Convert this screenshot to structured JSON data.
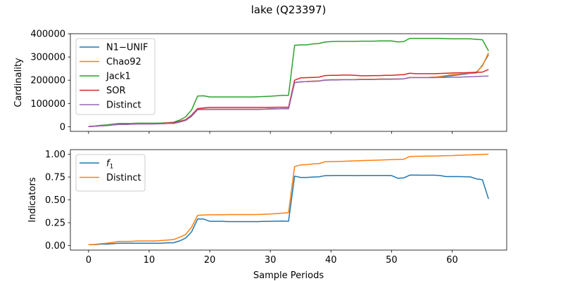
{
  "figure": {
    "title": "lake (Q23397)",
    "shared_xlabel": "Sample Periods"
  },
  "colors": {
    "blue": "#1f77b4",
    "orange": "#ff7f0e",
    "green": "#2ca02c",
    "red": "#d62728",
    "purple": "#9467bd"
  },
  "chart_data": [
    {
      "type": "line",
      "title": "",
      "xlabel": "",
      "ylabel": "Cardinality",
      "xlim": [
        -3,
        69
      ],
      "ylim": [
        -20000,
        400000
      ],
      "xticks": [
        0,
        10,
        20,
        30,
        40,
        50,
        60
      ],
      "xticklabels": [],
      "yticks": [
        0,
        100000,
        200000,
        300000,
        400000
      ],
      "yticklabels": [
        "0",
        "100000",
        "200000",
        "300000",
        "400000"
      ],
      "legend": "top-left",
      "grid": false,
      "x": [
        0,
        1,
        2,
        3,
        4,
        5,
        6,
        7,
        8,
        9,
        10,
        11,
        12,
        13,
        14,
        15,
        16,
        17,
        18,
        19,
        20,
        21,
        22,
        23,
        24,
        25,
        26,
        27,
        28,
        29,
        30,
        31,
        32,
        33,
        34,
        35,
        36,
        37,
        38,
        39,
        40,
        41,
        42,
        43,
        44,
        45,
        46,
        47,
        48,
        49,
        50,
        51,
        52,
        53,
        54,
        55,
        56,
        57,
        58,
        59,
        60,
        61,
        62,
        63,
        64,
        65,
        66
      ],
      "series": [
        {
          "name": "N1−UNIF",
          "color": "#1f77b4",
          "values": [
            1000,
            2000,
            4000,
            5000,
            8000,
            10000,
            10000,
            11000,
            12000,
            12000,
            12000,
            12000,
            13000,
            14000,
            14000,
            20000,
            27000,
            45000,
            74000,
            75000,
            75000,
            75000,
            75000,
            75000,
            75000,
            75000,
            75000,
            75000,
            75000,
            76000,
            77000,
            77000,
            78000,
            78000,
            190000,
            193000,
            194000,
            196000,
            197000,
            201000,
            202000,
            202000,
            203000,
            203000,
            203000,
            204000,
            204000,
            204000,
            205000,
            205000,
            205000,
            205000,
            206000,
            212000,
            212000,
            212000,
            212000,
            213000,
            214000,
            217000,
            220000,
            223000,
            226000,
            230000,
            232000,
            265000,
            310000
          ]
        },
        {
          "name": "Chao92",
          "color": "#ff7f0e",
          "values": [
            1000,
            2000,
            4000,
            5000,
            8000,
            10000,
            10000,
            11000,
            12000,
            12000,
            12000,
            12000,
            13000,
            14000,
            14000,
            20000,
            27000,
            45000,
            74000,
            75000,
            75000,
            75000,
            75000,
            75000,
            75000,
            75000,
            75000,
            75000,
            75000,
            76000,
            77000,
            77000,
            78000,
            78000,
            190000,
            193000,
            194000,
            196000,
            197000,
            201000,
            202000,
            202000,
            203000,
            203000,
            203000,
            204000,
            204000,
            204000,
            205000,
            205000,
            205000,
            205000,
            206000,
            212000,
            212000,
            212000,
            212000,
            213000,
            216000,
            220000,
            224000,
            226000,
            228000,
            232000,
            235000,
            262000,
            318000
          ]
        },
        {
          "name": "Jack1",
          "color": "#2ca02c",
          "values": [
            1500,
            3000,
            6000,
            8000,
            11000,
            14000,
            14000,
            14000,
            15000,
            15000,
            15000,
            15000,
            16000,
            17000,
            19000,
            28000,
            42000,
            72000,
            132000,
            133000,
            128000,
            128000,
            128000,
            128000,
            128000,
            128000,
            128000,
            128000,
            129000,
            130000,
            131000,
            133000,
            135000,
            135000,
            350000,
            352000,
            352000,
            356000,
            358000,
            364000,
            366000,
            367000,
            367000,
            367000,
            367000,
            368000,
            368000,
            368000,
            369000,
            369000,
            369000,
            365000,
            366000,
            380000,
            380000,
            380000,
            380000,
            380000,
            380000,
            379000,
            378000,
            378000,
            378000,
            378000,
            376000,
            374000,
            326000
          ]
        },
        {
          "name": "SOR",
          "color": "#d62728",
          "values": [
            1000,
            2000,
            4000,
            5000,
            8000,
            10000,
            10000,
            11000,
            12000,
            13000,
            13000,
            13000,
            14000,
            16000,
            17000,
            23000,
            30000,
            50000,
            78000,
            81000,
            83000,
            83000,
            83000,
            83000,
            83000,
            83000,
            83000,
            83000,
            83000,
            83000,
            83000,
            84000,
            84000,
            84000,
            200000,
            210000,
            211000,
            212000,
            213000,
            220000,
            221000,
            221000,
            222000,
            222000,
            221000,
            219000,
            219000,
            220000,
            220000,
            221000,
            221000,
            223000,
            224000,
            230000,
            228000,
            228000,
            228000,
            228000,
            229000,
            230000,
            231000,
            232000,
            232000,
            233000,
            234000,
            235000,
            246000
          ]
        },
        {
          "name": "Distinct",
          "color": "#9467bd",
          "values": [
            1000,
            2000,
            4000,
            5000,
            8000,
            10000,
            10000,
            11000,
            12000,
            12000,
            12000,
            12000,
            13000,
            14000,
            14000,
            20000,
            27000,
            45000,
            73000,
            74000,
            74000,
            74000,
            74000,
            74000,
            74000,
            74000,
            74000,
            74000,
            74000,
            75000,
            76000,
            77000,
            77000,
            77000,
            190000,
            193000,
            194000,
            195000,
            196000,
            200000,
            201000,
            201000,
            202000,
            202000,
            202000,
            203000,
            203000,
            203000,
            204000,
            204000,
            204000,
            205000,
            206000,
            211000,
            211000,
            211000,
            211000,
            211000,
            212000,
            212000,
            213000,
            213000,
            214000,
            215000,
            216000,
            217000,
            218000
          ]
        }
      ]
    },
    {
      "type": "line",
      "title": "",
      "xlabel": "Sample Periods",
      "ylabel": "Indicators",
      "xlim": [
        -3,
        69
      ],
      "ylim": [
        -0.05,
        1.05
      ],
      "xticks": [
        0,
        10,
        20,
        30,
        40,
        50,
        60
      ],
      "xticklabels": [
        "0",
        "10",
        "20",
        "30",
        "40",
        "50",
        "60"
      ],
      "yticks": [
        0,
        0.25,
        0.5,
        0.75,
        1.0
      ],
      "yticklabels": [
        "0.00",
        "0.25",
        "0.50",
        "0.75",
        "1.00"
      ],
      "legend": "top-left",
      "grid": false,
      "x": [
        0,
        1,
        2,
        3,
        4,
        5,
        6,
        7,
        8,
        9,
        10,
        11,
        12,
        13,
        14,
        15,
        16,
        17,
        18,
        19,
        20,
        21,
        22,
        23,
        24,
        25,
        26,
        27,
        28,
        29,
        30,
        31,
        32,
        33,
        34,
        35,
        36,
        37,
        38,
        39,
        40,
        41,
        42,
        43,
        44,
        45,
        46,
        47,
        48,
        49,
        50,
        51,
        52,
        53,
        54,
        55,
        56,
        57,
        58,
        59,
        60,
        61,
        62,
        63,
        64,
        65,
        66
      ],
      "series": [
        {
          "name": "f1",
          "display_name": "f",
          "display_sub": "1",
          "color": "#1f77b4",
          "values": [
            0.01,
            0.01,
            0.015,
            0.015,
            0.02,
            0.025,
            0.025,
            0.025,
            0.025,
            0.025,
            0.025,
            0.025,
            0.025,
            0.03,
            0.03,
            0.05,
            0.08,
            0.15,
            0.29,
            0.29,
            0.265,
            0.265,
            0.265,
            0.262,
            0.262,
            0.262,
            0.262,
            0.262,
            0.262,
            0.264,
            0.265,
            0.266,
            0.268,
            0.265,
            0.76,
            0.745,
            0.745,
            0.75,
            0.752,
            0.765,
            0.766,
            0.767,
            0.767,
            0.767,
            0.766,
            0.767,
            0.767,
            0.767,
            0.767,
            0.767,
            0.766,
            0.737,
            0.74,
            0.771,
            0.771,
            0.77,
            0.77,
            0.77,
            0.766,
            0.755,
            0.755,
            0.755,
            0.753,
            0.752,
            0.73,
            0.72,
            0.51
          ]
        },
        {
          "name": "Distinct",
          "color": "#ff7f0e",
          "values": [
            0.01,
            0.012,
            0.02,
            0.025,
            0.035,
            0.045,
            0.045,
            0.045,
            0.05,
            0.05,
            0.05,
            0.05,
            0.055,
            0.06,
            0.065,
            0.09,
            0.12,
            0.2,
            0.33,
            0.335,
            0.337,
            0.337,
            0.337,
            0.338,
            0.338,
            0.338,
            0.338,
            0.338,
            0.339,
            0.342,
            0.345,
            0.35,
            0.355,
            0.36,
            0.865,
            0.883,
            0.886,
            0.893,
            0.897,
            0.917,
            0.919,
            0.92,
            0.922,
            0.925,
            0.927,
            0.93,
            0.932,
            0.934,
            0.936,
            0.938,
            0.94,
            0.942,
            0.945,
            0.975,
            0.977,
            0.978,
            0.979,
            0.98,
            0.982,
            0.984,
            0.985,
            0.988,
            0.99,
            0.992,
            0.995,
            0.998,
            1.0
          ]
        }
      ]
    }
  ]
}
